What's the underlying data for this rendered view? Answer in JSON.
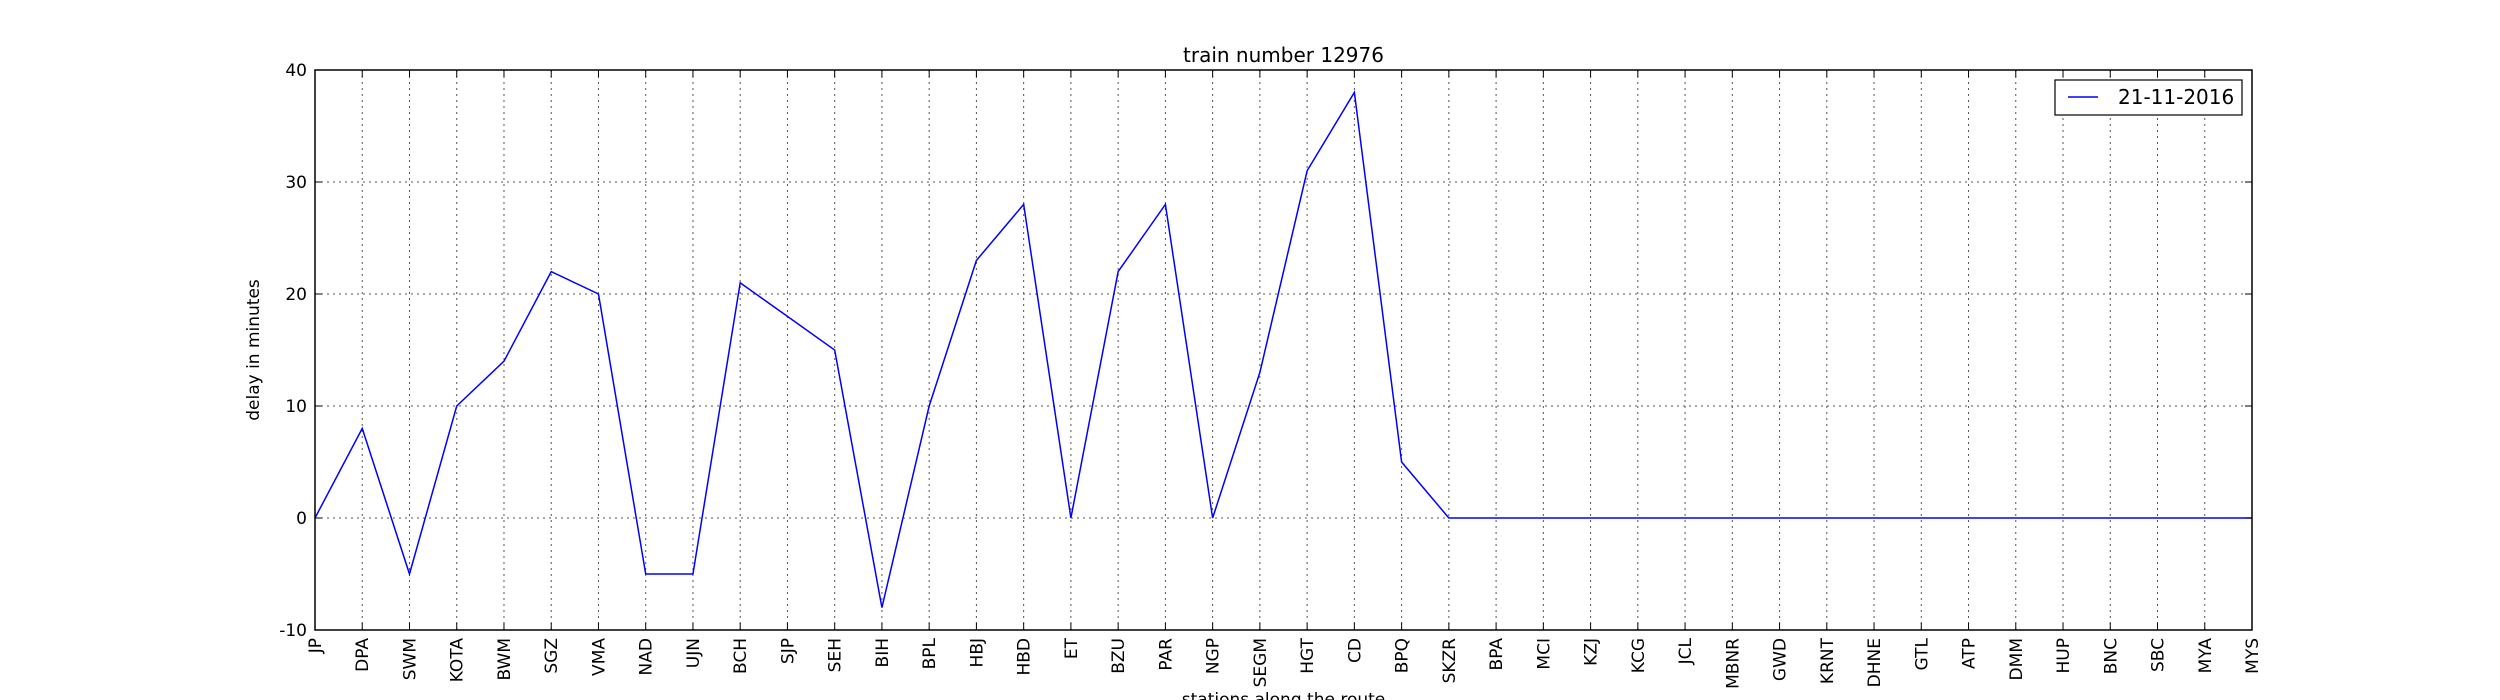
{
  "chart_data": {
    "type": "line",
    "title": "train number 12976",
    "xlabel": "stations along the route",
    "ylabel": "delay in minutes",
    "ylim": [
      -10,
      40
    ],
    "yticks": [
      -10,
      0,
      10,
      20,
      30,
      40
    ],
    "grid": true,
    "legend_position": "top-right",
    "categories": [
      "JP",
      "DPA",
      "SWM",
      "KOTA",
      "BWM",
      "SGZ",
      "VMA",
      "NAD",
      "UJN",
      "BCH",
      "SJP",
      "SEH",
      "BIH",
      "BPL",
      "HBJ",
      "HBD",
      "ET",
      "BZU",
      "PAR",
      "NGP",
      "SEGM",
      "HGT",
      "CD",
      "BPQ",
      "SKZR",
      "BPA",
      "MCI",
      "KZJ",
      "KCG",
      "JCL",
      "MBNR",
      "GWD",
      "KRNT",
      "DHNE",
      "GTL",
      "ATP",
      "DMM",
      "HUP",
      "BNC",
      "SBC",
      "MYA",
      "MYS"
    ],
    "series": [
      {
        "name": "21-11-2016",
        "color": "#0000ff",
        "values": [
          0,
          8,
          -5,
          10,
          14,
          22,
          20,
          -5,
          -5,
          21,
          18,
          15,
          -8,
          10,
          23,
          28,
          0,
          22,
          28,
          0,
          13,
          31,
          38,
          5,
          0,
          0,
          0,
          0,
          0,
          0,
          0,
          0,
          0,
          0,
          0,
          0,
          0,
          0,
          0,
          0,
          0,
          0
        ]
      }
    ]
  }
}
